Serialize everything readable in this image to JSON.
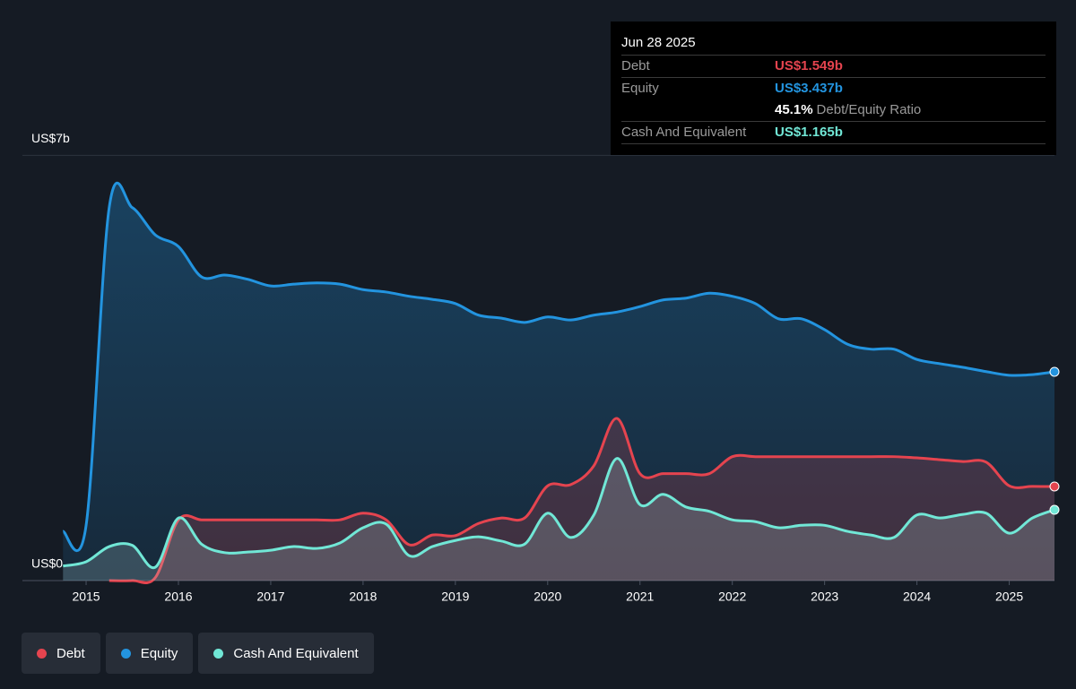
{
  "chart_data": {
    "type": "line",
    "x": [
      2014.75,
      2015.0,
      2015.25,
      2015.5,
      2015.75,
      2016.0,
      2016.25,
      2016.5,
      2016.75,
      2017.0,
      2017.25,
      2017.5,
      2017.75,
      2018.0,
      2018.25,
      2018.5,
      2018.75,
      2019.0,
      2019.25,
      2019.5,
      2019.75,
      2020.0,
      2020.25,
      2020.5,
      2020.75,
      2021.0,
      2021.25,
      2021.5,
      2021.75,
      2022.0,
      2022.25,
      2022.5,
      2022.75,
      2023.0,
      2023.25,
      2023.5,
      2023.75,
      2024.0,
      2024.25,
      2024.5,
      2024.75,
      2025.0,
      2025.25,
      2025.49
    ],
    "series": [
      {
        "name": "Debt",
        "color": "#e5444f",
        "values": [
          null,
          null,
          0,
          0,
          0.05,
          1.0,
          1.0,
          1.0,
          1.0,
          1.0,
          1.0,
          1.0,
          1.0,
          1.11,
          1.0,
          0.59,
          0.75,
          0.74,
          0.94,
          1.03,
          1.03,
          1.56,
          1.58,
          1.89,
          2.67,
          1.76,
          1.76,
          1.76,
          1.76,
          2.04,
          2.04,
          2.04,
          2.04,
          2.04,
          2.04,
          2.04,
          2.04,
          2.02,
          1.99,
          1.96,
          1.95,
          1.56,
          1.55,
          1.549
        ]
      },
      {
        "name": "Equity",
        "color": "#2394df",
        "values": [
          0.81,
          0.91,
          6.14,
          6.14,
          5.69,
          5.5,
          5.0,
          5.03,
          4.96,
          4.85,
          4.88,
          4.9,
          4.88,
          4.79,
          4.75,
          4.68,
          4.63,
          4.56,
          4.37,
          4.32,
          4.25,
          4.34,
          4.29,
          4.37,
          4.42,
          4.51,
          4.62,
          4.65,
          4.73,
          4.68,
          4.56,
          4.31,
          4.31,
          4.13,
          3.89,
          3.81,
          3.81,
          3.64,
          3.57,
          3.51,
          3.44,
          3.38,
          3.39,
          3.437
        ]
      },
      {
        "name": "Cash And Equivalent",
        "color": "#71e7d6",
        "values": [
          0.24,
          0.31,
          0.56,
          0.58,
          0.22,
          1.03,
          0.6,
          0.46,
          0.47,
          0.5,
          0.56,
          0.53,
          0.62,
          0.87,
          0.93,
          0.41,
          0.56,
          0.66,
          0.72,
          0.65,
          0.6,
          1.11,
          0.71,
          1.08,
          2.01,
          1.25,
          1.42,
          1.21,
          1.14,
          1.0,
          0.97,
          0.87,
          0.91,
          0.91,
          0.81,
          0.75,
          0.71,
          1.08,
          1.03,
          1.09,
          1.11,
          0.78,
          1.03,
          1.165
        ]
      }
    ],
    "xlim": [
      2014.31,
      2025.49
    ],
    "xticks": [
      2015,
      2016,
      2017,
      2018,
      2019,
      2020,
      2021,
      2022,
      2023,
      2024,
      2025
    ],
    "ylim": [
      0,
      7
    ],
    "yticks": [
      {
        "value": 0,
        "label": "US$0"
      },
      {
        "value": 7,
        "label": "US$7b"
      }
    ],
    "grid": true,
    "tooltip": {
      "date": "Jun 28 2025",
      "rows": [
        {
          "label": "Debt",
          "value": "US$1.549b"
        },
        {
          "label": "Equity",
          "value": "US$3.437b"
        }
      ],
      "ratio": {
        "value": "45.1%",
        "label": "Debt/Equity Ratio"
      },
      "last": {
        "label": "Cash And Equivalent",
        "value": "US$1.165b"
      }
    }
  }
}
